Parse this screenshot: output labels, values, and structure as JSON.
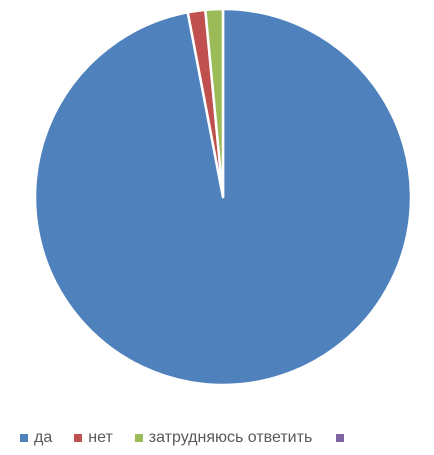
{
  "chart_data": {
    "type": "pie",
    "categories": [
      "да",
      "нет",
      "затрудняюсь ответить",
      ""
    ],
    "values": [
      97.0,
      1.5,
      1.5,
      0
    ],
    "colors": [
      "#4F81BD",
      "#C0504D",
      "#9BBB59",
      "#8064A2"
    ],
    "legend_placement": "bottom",
    "title": ""
  }
}
